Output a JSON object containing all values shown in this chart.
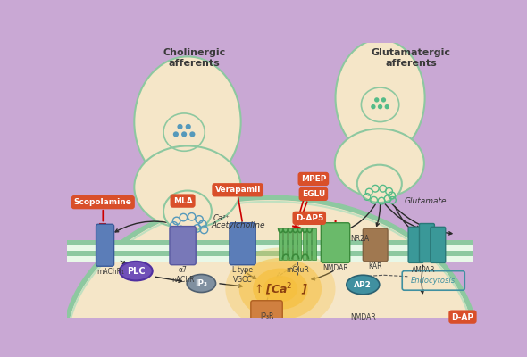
{
  "bg_color": "#c9a8d4",
  "neuron_fill": "#f5e6c8",
  "neuron_fill2": "#f0d8b0",
  "neuron_outline": "#8dc8a0",
  "title_color": "#3a3a3a",
  "drug_bg": "#d94f2a",
  "drug_text": "#ffffff",
  "label_color": "#3a3a3a",
  "arrow_color": "#2a2a2a",
  "inhibit_color": "#cc0000",
  "cholinergic_text": "Cholinergic\nafferents",
  "glutamatergic_text": "Glutamatergic\nafferents",
  "acetylcholine_text": "Acetylcholine",
  "glutamate_text": "Glutamate",
  "machr_color": "#5b7db8",
  "nachr_color": "#7878b8",
  "vgcc_color": "#5b7db8",
  "mglur_color": "#6aba6a",
  "nmdar_color": "#6aba6a",
  "kar_color": "#a07850",
  "ampar_color": "#3a9898",
  "plc_color": "#7050b8",
  "ip3_color": "#8090a0",
  "ap2_color": "#4090a0",
  "ca_glow": "#f5c040",
  "cell_body_fill": "#f5e6c8",
  "membrane_green": "#8dc8a0",
  "ip3r_color": "#d08040",
  "vesicle_blue": "#5599bb",
  "vesicle_green": "#55bb88"
}
